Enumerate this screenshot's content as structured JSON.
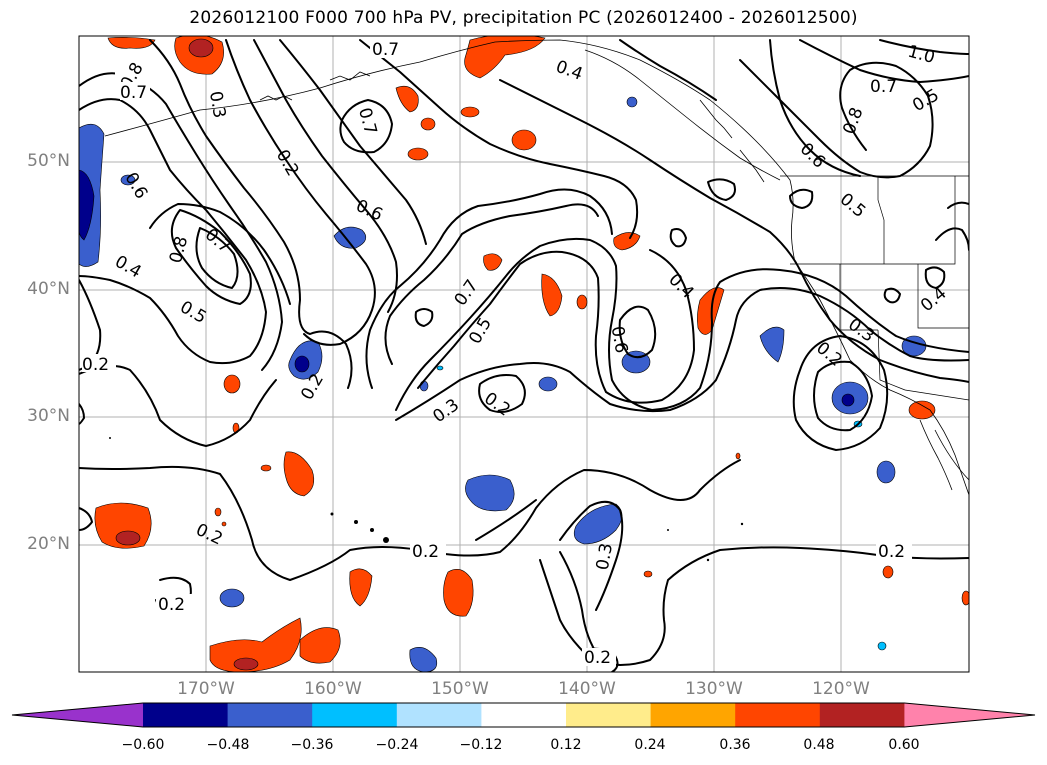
{
  "title": "2026012100 F000 700 hPa PV, precipitation PC (2026012400 - 2026012500)",
  "latitude_labels": [
    "50°N",
    "40°N",
    "30°N",
    "20°N"
  ],
  "longitude_labels": [
    "170°W",
    "160°W",
    "150°W",
    "140°W",
    "130°W",
    "120°W"
  ],
  "contour_labels": [
    "0.7",
    "0.8",
    "0.7",
    "0.3",
    "0.2",
    "0.7",
    "0.4",
    "1.0",
    "0.7",
    "0.5",
    "0.8",
    "0.6",
    "0.6",
    "0.5",
    "0.6",
    "0.7",
    "0.8",
    "0.4",
    "0.5",
    "0.7",
    "0.5",
    "0.4",
    "0.6",
    "0.3",
    "0.2",
    "0.2",
    "0.4",
    "0.3",
    "0.2",
    "0.2",
    "0.3",
    "0.2",
    "0.2",
    "0.2",
    "0.2"
  ],
  "colorbar": {
    "ticks": [
      "−0.60",
      "−0.48",
      "−0.36",
      "−0.24",
      "−0.12",
      "0.12",
      "0.24",
      "0.36",
      "0.48",
      "0.60"
    ],
    "colors": [
      "#9932cc",
      "#00008b",
      "#3a5fcd",
      "#00bfff",
      "#b0e2ff",
      "#ffffff",
      "#ffec8b",
      "#ffa500",
      "#ff4500",
      "#b22222",
      "#ff82ab"
    ]
  }
}
